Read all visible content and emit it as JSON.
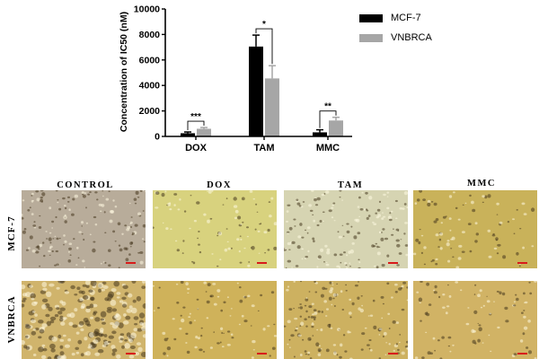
{
  "chart_data": {
    "type": "bar",
    "title": "",
    "xlabel": "",
    "ylabel": "Concentration of IC50 (nM)",
    "ylim": [
      0,
      10000
    ],
    "yticks": [
      "0",
      "2000",
      "4000",
      "6000",
      "8000",
      "10000"
    ],
    "ytick_values": [
      0,
      2000,
      4000,
      6000,
      8000,
      10000
    ],
    "categories": [
      "DOX",
      "TAM",
      "MMC"
    ],
    "legend_position": "top-right",
    "series": [
      {
        "name": "MCF-7",
        "color": "#000000",
        "values": [
          250,
          7050,
          320
        ],
        "errors": [
          100,
          900,
          200
        ]
      },
      {
        "name": "VNBRCA",
        "color": "#a6a6a6",
        "values": [
          600,
          4550,
          1250
        ],
        "errors": [
          100,
          1000,
          250
        ]
      }
    ],
    "significance": [
      "***",
      "*",
      "**"
    ]
  },
  "micrographs": {
    "columns": [
      "CONTROL",
      "DOX",
      "TAM",
      "MMC"
    ],
    "rows": [
      "MCF-7",
      "VNBRCA"
    ],
    "scale_bar_color": "#d81b1b",
    "panel_colors": [
      [
        "#b8ac9a",
        "#d8d27e",
        "#d6d4b2",
        "#c9b25a"
      ],
      [
        "#d0b46c",
        "#cfb25a",
        "#cdb160",
        "#d1b365"
      ]
    ]
  }
}
